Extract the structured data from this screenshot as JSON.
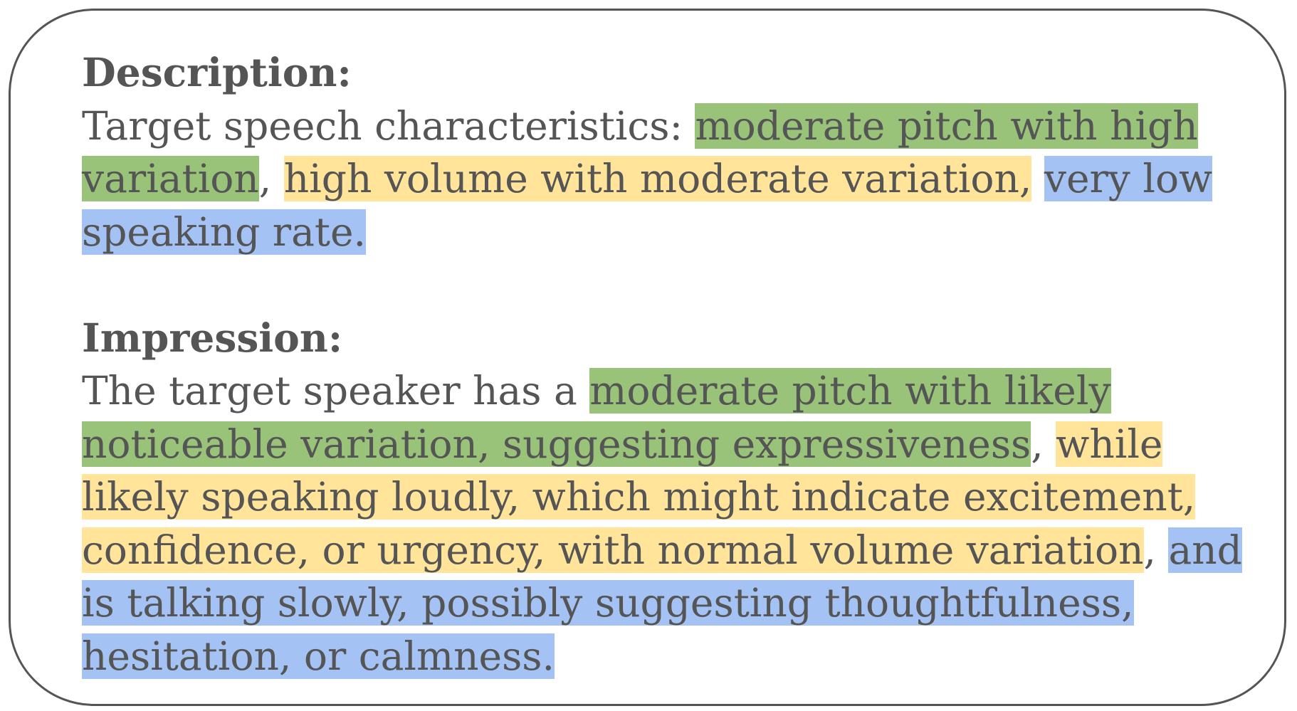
{
  "colors": {
    "pitch_highlight": "#98c379",
    "volume_highlight": "#ffe49a",
    "rate_highlight": "#a4c2f4",
    "text": "#555555",
    "border": "#555555"
  },
  "description": {
    "heading": "Description:",
    "lead": "Target speech characteristics: ",
    "pitch": "moderate pitch with high variation",
    "sep1": ", ",
    "volume": "high volume with moderate variation,",
    "sep2": " ",
    "rate": "very low speaking rate."
  },
  "impression": {
    "heading": "Impression:",
    "lead": "The target speaker has a ",
    "pitch": "moderate pitch with likely noticeable variation, suggesting expressiveness",
    "sep1": ", ",
    "volume": "while likely speaking loudly, which might indicate excitement, confidence, or urgency, with normal volume variation",
    "sep2": ", ",
    "rate": "and is talking slowly, possibly suggesting thoughtfulness, hesitation, or calmness."
  }
}
